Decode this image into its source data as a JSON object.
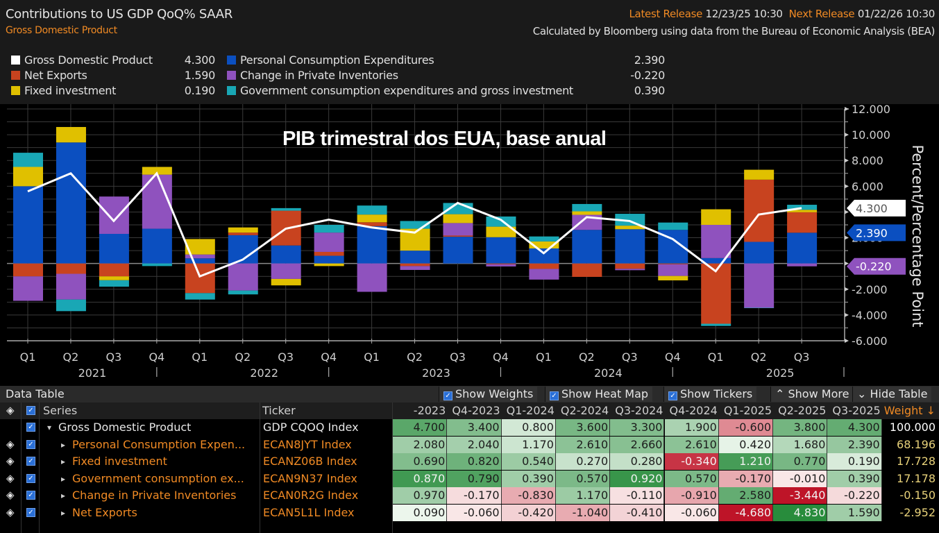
{
  "header": {
    "title": "Contributions to US GDP QoQ% SAAR",
    "subtitle": "Gross Domestic Product",
    "latest_release_label": "Latest Release",
    "latest_release_value": "12/23/25 10:30",
    "next_release_label": "Next Release",
    "next_release_value": "01/22/26 10:30",
    "source": "Calculated by Bloomberg using data from the Bureau of Economic Analysis (BEA)"
  },
  "legend": [
    {
      "name": "Gross Domestic Product",
      "value": "4.300",
      "color": "#ffffff"
    },
    {
      "name": "Net Exports",
      "value": "1.590",
      "color": "#c8431f"
    },
    {
      "name": "Fixed investment",
      "value": "0.190",
      "color": "#e0c000"
    },
    {
      "name": "Personal Consumption Expenditures",
      "value": "2.390",
      "color": "#0b4fc0"
    },
    {
      "name": "Change in Private Inventories",
      "value": "-0.220",
      "color": "#8f52be"
    },
    {
      "name": "Government consumption expenditures and gross investment",
      "value": "0.390",
      "color": "#19a7b5"
    }
  ],
  "overlay_title": "PIB trimestral dos EUA, base anual",
  "chart_data": {
    "type": "bar",
    "stacked": true,
    "title": "Contributions to US GDP QoQ% SAAR",
    "xlabel": "",
    "ylabel": "Percent/Percentage Point",
    "ylim": [
      -6,
      12
    ],
    "yticks": [
      "12.000",
      "10.000",
      "8.000",
      "6.000",
      "4.000",
      "2.000",
      "0.000",
      "-2.000",
      "-4.000",
      "-6.000"
    ],
    "grid": true,
    "categories": [
      "Q1",
      "Q2",
      "Q3",
      "Q4",
      "Q1",
      "Q2",
      "Q3",
      "Q4",
      "Q1",
      "Q2",
      "Q3",
      "Q4",
      "Q1",
      "Q2",
      "Q3",
      "Q4",
      "Q1",
      "Q2",
      "Q3"
    ],
    "year_labels": [
      {
        "label": "2021",
        "at_index": 1
      },
      {
        "label": "2022",
        "at_index": 5
      },
      {
        "label": "2023",
        "at_index": 9
      },
      {
        "label": "2024",
        "at_index": 13
      },
      {
        "label": "2025",
        "at_index": 17
      }
    ],
    "series": [
      {
        "name": "Personal Consumption Expenditures",
        "color": "#0b4fc0",
        "values": [
          6.0,
          9.4,
          2.3,
          2.7,
          0.4,
          2.2,
          1.4,
          0.6,
          2.9,
          1.0,
          2.08,
          2.04,
          1.17,
          2.61,
          2.66,
          2.61,
          0.42,
          1.68,
          2.39
        ]
      },
      {
        "name": "Net Exports",
        "color": "#c8431f",
        "values": [
          -1.0,
          -0.8,
          -1.0,
          0.0,
          -2.3,
          0.2,
          2.7,
          0.3,
          0.3,
          -0.2,
          0.09,
          -0.06,
          -0.42,
          -1.04,
          -0.41,
          -0.06,
          -4.68,
          4.83,
          1.59
        ]
      },
      {
        "name": "Change in Private Inventories",
        "color": "#8f52be",
        "values": [
          -1.9,
          -2.0,
          2.9,
          4.2,
          0.3,
          -2.1,
          -1.2,
          1.5,
          -2.2,
          -0.3,
          0.97,
          -0.17,
          -0.83,
          1.17,
          -0.11,
          -0.91,
          2.58,
          -3.44,
          -0.22
        ]
      },
      {
        "name": "Fixed investment",
        "color": "#e0c000",
        "values": [
          1.5,
          1.2,
          -0.3,
          0.6,
          1.2,
          0.4,
          -0.5,
          -0.2,
          0.6,
          1.7,
          0.69,
          0.82,
          0.54,
          0.27,
          0.28,
          -0.34,
          1.21,
          0.77,
          0.19
        ]
      },
      {
        "name": "Government consumption expenditures and gross investment",
        "color": "#19a7b5",
        "values": [
          1.1,
          -0.9,
          -0.5,
          -0.2,
          -0.5,
          -0.3,
          0.2,
          0.6,
          0.7,
          0.6,
          0.87,
          0.79,
          0.39,
          0.57,
          0.92,
          0.57,
          -0.17,
          -0.01,
          0.39
        ]
      }
    ],
    "line_series": {
      "name": "Gross Domestic Product",
      "color": "#ffffff",
      "values": [
        5.6,
        7.0,
        3.3,
        7.0,
        -1.0,
        0.3,
        2.7,
        3.4,
        2.8,
        2.4,
        4.7,
        3.4,
        0.8,
        3.6,
        3.3,
        1.9,
        -0.6,
        3.8,
        4.3
      ]
    },
    "last_value_tags": [
      {
        "value": "4.300",
        "color": "#ffffff",
        "text_color": "#555555"
      },
      {
        "value": "2.390",
        "color": "#0b4fc0",
        "text_color": "#ffffff"
      },
      {
        "value": "-0.220",
        "color": "#8f52be",
        "text_color": "#ffffff"
      }
    ]
  },
  "table": {
    "title": "Data Table",
    "toolbar": {
      "show_weights": "Show Weights",
      "show_heat_map": "Show Heat Map",
      "show_tickers": "Show Tickers",
      "show_more": "Show More",
      "hide_table": "Hide Table"
    },
    "columns": {
      "series": "Series",
      "ticker": "Ticker",
      "periods": [
        "-2023",
        "Q4-2023",
        "Q1-2024",
        "Q2-2024",
        "Q3-2024",
        "Q4-2024",
        "Q1-2025",
        "Q2-2025",
        "Q3-2025"
      ],
      "weight": "Weight ↓"
    },
    "rows": [
      {
        "series": "Gross Domestic Product",
        "ticker": "GDP CQOQ Index",
        "parent": true,
        "values": [
          "4.700",
          "3.400",
          "0.800",
          "3.600",
          "3.300",
          "1.900",
          "-0.600",
          "3.800",
          "4.300"
        ],
        "heat": [
          0.75,
          0.55,
          0.15,
          0.6,
          0.55,
          0.35,
          -0.45,
          0.62,
          0.7
        ],
        "weight": "100.000"
      },
      {
        "series": "Personal Consumption Expen...",
        "ticker": "ECAN8JYT Index",
        "parent": false,
        "values": [
          "2.080",
          "2.040",
          "1.170",
          "2.610",
          "2.660",
          "2.610",
          "0.420",
          "1.680",
          "2.390"
        ],
        "heat": [
          0.4,
          0.38,
          0.18,
          0.5,
          0.52,
          0.5,
          0.05,
          0.3,
          0.45
        ],
        "weight": "68.196"
      },
      {
        "series": "Fixed investment",
        "ticker": "ECANZ06B Index",
        "parent": false,
        "values": [
          "0.690",
          "0.820",
          "0.540",
          "0.270",
          "0.280",
          "-0.340",
          "1.210",
          "0.770",
          "0.190"
        ],
        "heat": [
          0.55,
          0.65,
          0.42,
          0.2,
          0.22,
          -0.85,
          0.85,
          0.6,
          0.12
        ],
        "weight": "17.728"
      },
      {
        "series": "Government consumption ex...",
        "ticker": "ECAN9N37 Index",
        "parent": false,
        "values": [
          "0.870",
          "0.790",
          "0.390",
          "0.570",
          "0.920",
          "0.570",
          "-0.170",
          "-0.010",
          "0.390"
        ],
        "heat": [
          0.88,
          0.8,
          0.4,
          0.58,
          0.92,
          0.58,
          -0.3,
          -0.02,
          0.4
        ],
        "weight": "17.178"
      },
      {
        "series": "Change in Private Inventories",
        "ticker": "ECAN0R2G Index",
        "parent": false,
        "values": [
          "0.970",
          "-0.170",
          "-0.830",
          "1.170",
          "-0.110",
          "-0.910",
          "2.580",
          "-3.440",
          "-0.220"
        ],
        "heat": [
          0.4,
          -0.07,
          -0.3,
          0.42,
          -0.05,
          -0.32,
          0.7,
          -1.0,
          -0.08
        ],
        "weight": "-0.150"
      },
      {
        "series": "Net Exports",
        "ticker": "ECAN5L1L Index",
        "parent": false,
        "values": [
          "0.090",
          "-0.060",
          "-0.420",
          "-1.040",
          "-0.410",
          "-0.060",
          "-4.680",
          "4.830",
          "1.590"
        ],
        "heat": [
          0.02,
          -0.02,
          -0.12,
          -0.3,
          -0.11,
          -0.02,
          -1.0,
          1.0,
          0.4
        ],
        "weight": "-2.952"
      }
    ]
  }
}
